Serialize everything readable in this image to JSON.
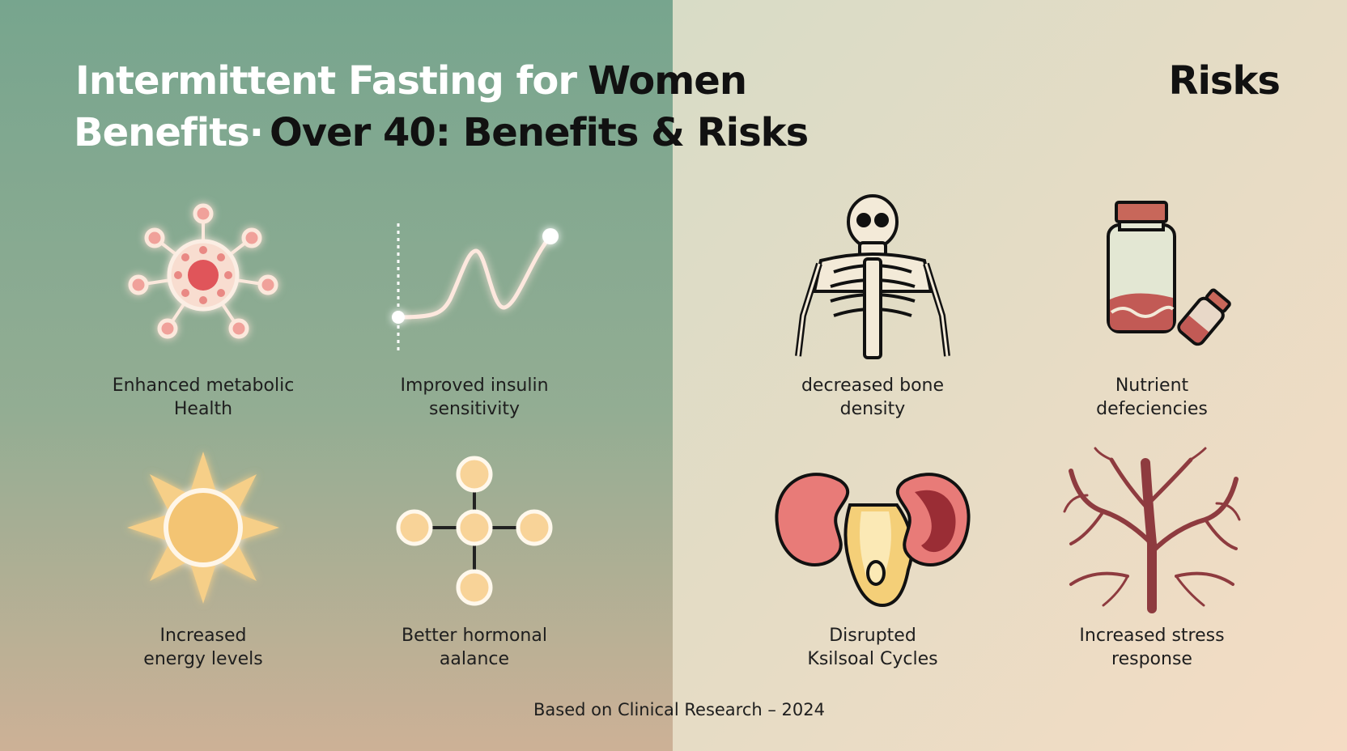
{
  "header": {
    "title_line1": {
      "light": "Intermittent Fasting for",
      "dark": "Women"
    },
    "title_line2": {
      "light": "Benefits·",
      "dark": "Over 40: Benefits & Risks"
    },
    "corner_label": "Risks"
  },
  "benefits": [
    {
      "lines": [
        "Enhanced metabolic",
        "Health"
      ]
    },
    {
      "lines": [
        "Improved insulin",
        "sensitivity"
      ]
    },
    {
      "lines": [
        "Increased",
        "energy levels"
      ]
    },
    {
      "lines": [
        "Better hormonal",
        "aalance"
      ]
    }
  ],
  "risks": [
    {
      "lines": [
        "decreased bone",
        "density"
      ]
    },
    {
      "lines": [
        "Nutrient",
        "defeciencies"
      ]
    },
    {
      "lines": [
        "Disrupted",
        "Ksilsoal Cycles"
      ]
    },
    {
      "lines": [
        "Increased stress",
        "response"
      ]
    }
  ],
  "footer": "Based on Clinical Research – 2024"
}
